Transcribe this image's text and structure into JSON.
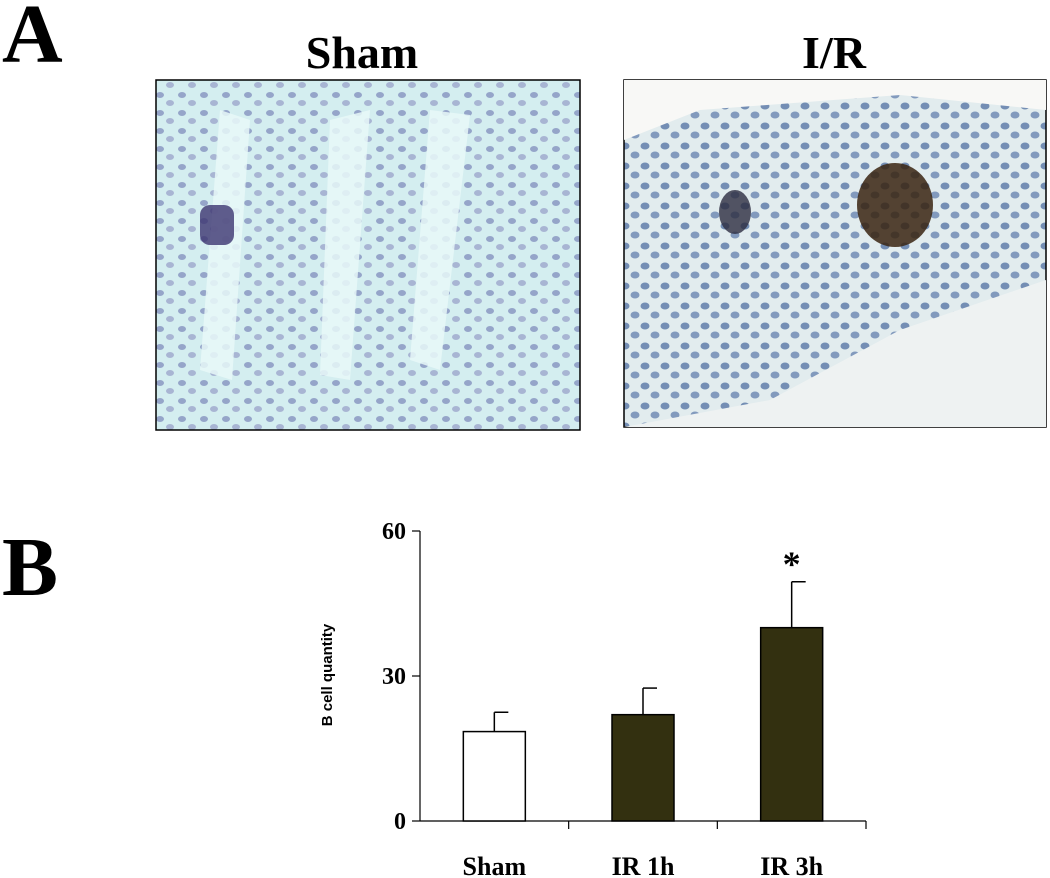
{
  "panel_a": {
    "label": "A",
    "images": [
      {
        "title": "Sham"
      },
      {
        "title": "I/R"
      }
    ]
  },
  "chart_data": {
    "type": "bar",
    "label": "B",
    "y_label": "B cell quantity",
    "categories": [
      "Sham",
      "IR 1h",
      "IR 3h"
    ],
    "values": [
      18.5,
      22,
      40
    ],
    "errors": [
      4,
      5.5,
      9.5
    ],
    "colors": [
      "#ffffff",
      "#333010",
      "#333010"
    ],
    "annotation": "*",
    "ylim": [
      0,
      60
    ],
    "yticks": [
      0,
      30,
      60
    ],
    "grid": false
  }
}
